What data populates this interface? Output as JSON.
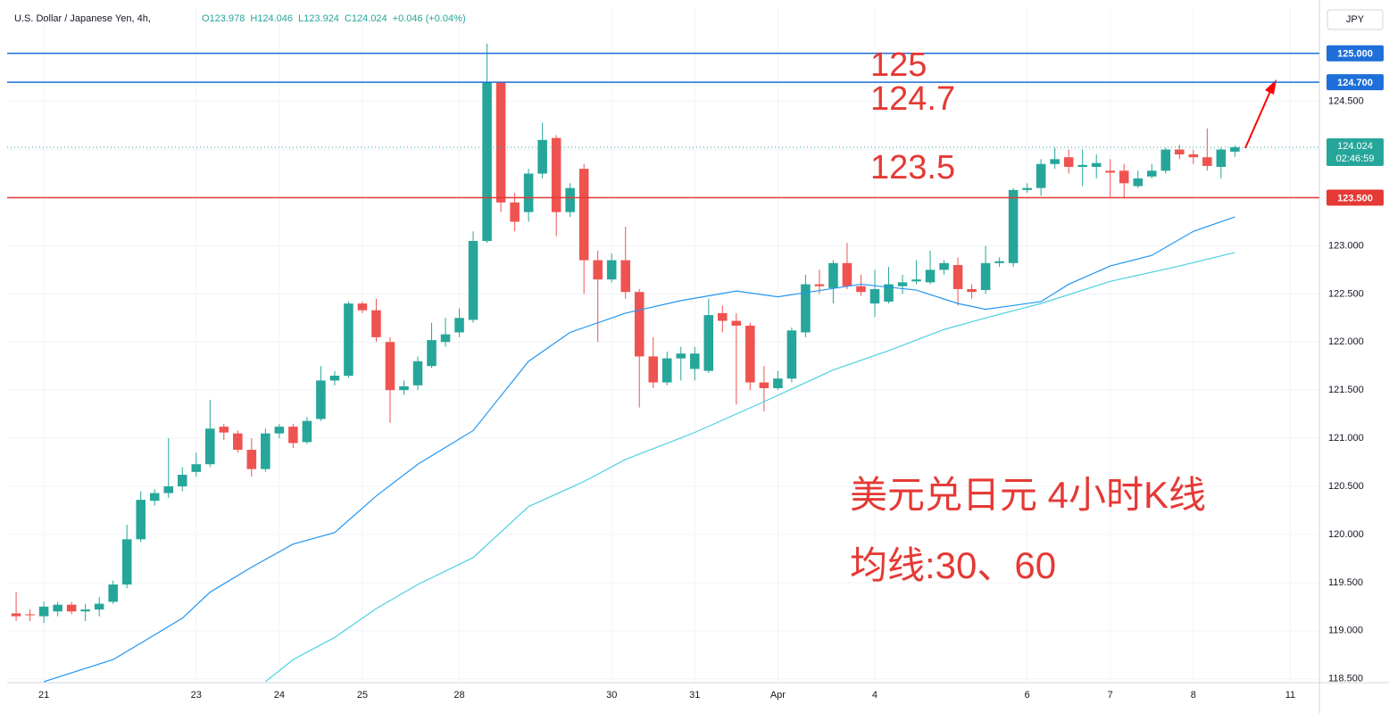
{
  "chart_data": {
    "type": "candlestick",
    "title": "U.S. Dollar / Japanese Yen, 4h,",
    "ohlc_labels": [
      "O123.978",
      "H124.046",
      "L123.924",
      "C124.024",
      "+0.046 (+0.04%)"
    ],
    "currency_button": "JPY",
    "up_color": "#26a69a",
    "down_color": "#ef5350",
    "grid": true,
    "xlim": [
      -0.65,
      94.1
    ],
    "ylim": [
      118.46,
      125.48
    ],
    "xticks": [
      {
        "value": 2,
        "label": "21"
      },
      {
        "value": 13,
        "label": "23"
      },
      {
        "value": 19,
        "label": "24"
      },
      {
        "value": 25,
        "label": "25"
      },
      {
        "value": 32,
        "label": "28"
      },
      {
        "value": 43,
        "label": "30"
      },
      {
        "value": 49,
        "label": "31"
      },
      {
        "value": 55,
        "label": "Apr"
      },
      {
        "value": 62,
        "label": "4"
      },
      {
        "value": 73,
        "label": "6"
      },
      {
        "value": 79,
        "label": "7"
      },
      {
        "value": 85,
        "label": "8"
      },
      {
        "value": 92,
        "label": "11"
      }
    ],
    "yticks": [
      {
        "value": 118.5,
        "label": "118.500"
      },
      {
        "value": 119,
        "label": "119.000"
      },
      {
        "value": 119.5,
        "label": "119.500"
      },
      {
        "value": 120,
        "label": "120.000"
      },
      {
        "value": 120.5,
        "label": "120.500"
      },
      {
        "value": 121,
        "label": "121.000"
      },
      {
        "value": 121.5,
        "label": "121.500"
      },
      {
        "value": 122,
        "label": "122.000"
      },
      {
        "value": 122.5,
        "label": "122.500"
      },
      {
        "value": 123,
        "label": "123.000"
      },
      {
        "value": 123.5,
        "label": "123.500"
      },
      {
        "value": 124,
        "label": "124.000"
      },
      {
        "value": 124.5,
        "label": "124.500"
      }
    ],
    "open": [
      119.18,
      119.17,
      119.15,
      119.2,
      119.27,
      119.2,
      119.22,
      119.3,
      119.48,
      119.95,
      120.35,
      120.43,
      120.5,
      120.65,
      120.73,
      121.12,
      121.05,
      120.88,
      120.68,
      121.05,
      121.12,
      120.96,
      121.2,
      121.6,
      121.65,
      122.4,
      122.33,
      122,
      121.5,
      121.55,
      121.75,
      122,
      122.1,
      122.23,
      123.05,
      124.7,
      123.45,
      123.35,
      123.75,
      124.12,
      123.35,
      123.8,
      122.85,
      122.65,
      122.85,
      122.52,
      121.85,
      121.58,
      121.83,
      121.72,
      121.7,
      122.3,
      122.22,
      122.17,
      121.58,
      121.52,
      121.62,
      122.1,
      122.6,
      122.56,
      122.82,
      122.58,
      122.4,
      122.42,
      122.58,
      122.63,
      122.62,
      122.75,
      122.8,
      122.55,
      122.54,
      122.82,
      122.82,
      123.58,
      123.6,
      123.85,
      123.92,
      123.82,
      123.82,
      123.78,
      123.78,
      123.62,
      123.72,
      123.78,
      124,
      123.95,
      123.92,
      123.82,
      123.978
    ],
    "high": [
      119.4,
      119.22,
      119.3,
      119.3,
      119.3,
      119.28,
      119.35,
      119.52,
      120.1,
      120.45,
      120.47,
      121,
      120.7,
      120.85,
      121.4,
      121.15,
      121.08,
      121,
      121.1,
      121.15,
      121.15,
      121.22,
      121.75,
      121.7,
      122.42,
      122.42,
      122.45,
      122.05,
      121.6,
      121.85,
      122.2,
      122.25,
      122.35,
      123.15,
      125.1,
      124.7,
      123.55,
      123.8,
      124.28,
      124.15,
      123.65,
      123.85,
      122.95,
      122.92,
      123.2,
      122.55,
      122.05,
      121.9,
      121.95,
      121.95,
      122.45,
      122.38,
      122.3,
      122.2,
      121.75,
      121.7,
      122.15,
      122.7,
      122.75,
      122.85,
      123.03,
      122.7,
      122.75,
      122.78,
      122.7,
      122.85,
      122.95,
      122.85,
      122.88,
      122.6,
      123,
      122.88,
      123.6,
      123.65,
      123.9,
      124.02,
      124,
      124,
      123.95,
      123.9,
      123.85,
      123.78,
      123.85,
      124.02,
      124.05,
      124,
      124.22,
      124.02,
      124.046
    ],
    "low": [
      119.1,
      119.1,
      119.08,
      119.15,
      119.17,
      119.1,
      119.15,
      119.28,
      119.44,
      119.92,
      120.3,
      120.38,
      120.45,
      120.6,
      120.7,
      120.98,
      120.85,
      120.6,
      120.65,
      121,
      120.9,
      120.94,
      121.18,
      121.55,
      121.63,
      122.3,
      122,
      121.16,
      121.45,
      121.5,
      121.73,
      121.95,
      122.05,
      122.2,
      123.03,
      123.35,
      123.15,
      123.25,
      123.7,
      123.1,
      123.3,
      122.5,
      122,
      122.62,
      122.45,
      121.32,
      121.52,
      121.55,
      121.6,
      121.6,
      121.68,
      122.1,
      121.35,
      121.5,
      121.28,
      121.5,
      121.58,
      122.05,
      122.5,
      122.4,
      122.55,
      122.48,
      122.26,
      122.4,
      122.5,
      122.6,
      122.6,
      122.7,
      122.38,
      122.45,
      122.5,
      122.78,
      122.78,
      123.55,
      123.52,
      123.8,
      123.75,
      123.62,
      123.7,
      123.5,
      123.5,
      123.6,
      123.7,
      123.75,
      123.9,
      123.85,
      123.78,
      123.7,
      123.924
    ],
    "close": [
      119.15,
      119.16,
      119.25,
      119.27,
      119.2,
      119.22,
      119.28,
      119.48,
      119.95,
      120.36,
      120.43,
      120.5,
      120.62,
      120.73,
      121.1,
      121.06,
      120.88,
      120.68,
      121.05,
      121.12,
      120.95,
      121.18,
      121.6,
      121.65,
      122.4,
      122.33,
      122.05,
      121.5,
      121.54,
      121.8,
      122.02,
      122.08,
      122.25,
      123.05,
      124.7,
      123.45,
      123.25,
      123.75,
      124.1,
      123.35,
      123.6,
      122.85,
      122.65,
      122.85,
      122.52,
      121.85,
      121.58,
      121.83,
      121.88,
      121.88,
      122.28,
      122.22,
      122.17,
      121.58,
      121.52,
      121.62,
      122.12,
      122.6,
      122.58,
      122.82,
      122.58,
      122.52,
      122.55,
      122.6,
      122.62,
      122.65,
      122.75,
      122.82,
      122.55,
      122.52,
      122.82,
      122.84,
      123.58,
      123.6,
      123.85,
      123.9,
      123.82,
      123.84,
      123.86,
      123.76,
      123.65,
      123.7,
      123.78,
      124,
      123.95,
      123.92,
      123.83,
      124,
      124.024
    ],
    "series": [
      {
        "name": "MA30",
        "color": "#2196f3",
        "x": [
          2,
          7,
          9,
          12,
          14,
          17,
          20,
          23,
          26,
          29,
          33,
          34,
          37,
          40,
          44,
          48,
          52,
          55,
          61,
          65,
          68,
          70,
          74,
          76,
          79,
          82,
          85,
          88
        ],
        "values": [
          118.47,
          118.7,
          118.87,
          119.13,
          119.4,
          119.66,
          119.9,
          120.02,
          120.4,
          120.73,
          121.08,
          121.26,
          121.8,
          122.1,
          122.3,
          122.43,
          122.53,
          122.47,
          122.6,
          122.54,
          122.4,
          122.34,
          122.42,
          122.6,
          122.79,
          122.9,
          123.15,
          123.3
        ]
      },
      {
        "name": "MA60",
        "color": "#4dd0e1",
        "x": [
          18,
          20,
          23,
          26,
          29,
          33,
          37,
          41,
          44,
          49,
          54,
          59,
          63,
          67,
          70,
          74,
          79,
          84,
          88
        ],
        "values": [
          118.47,
          118.7,
          118.93,
          119.23,
          119.48,
          119.76,
          120.29,
          120.55,
          120.78,
          121.06,
          121.38,
          121.71,
          121.91,
          122.13,
          122.25,
          122.4,
          122.63,
          122.79,
          122.93
        ]
      }
    ],
    "levels": [
      {
        "value": 125,
        "label": "125.000",
        "annotation": "125",
        "color": "#1e6fd9"
      },
      {
        "value": 124.7,
        "label": "124.700",
        "annotation": "124.7",
        "color": "#1e6fd9"
      },
      {
        "value": 123.5,
        "label": "123.500",
        "annotation": "123.5",
        "color": "#e53935"
      }
    ],
    "last_price": {
      "value": 124.024,
      "label": "124.024",
      "countdown": "02:46:59"
    },
    "annotations": [
      "美元兑日元 4小时K线",
      "均线:30、60"
    ]
  }
}
